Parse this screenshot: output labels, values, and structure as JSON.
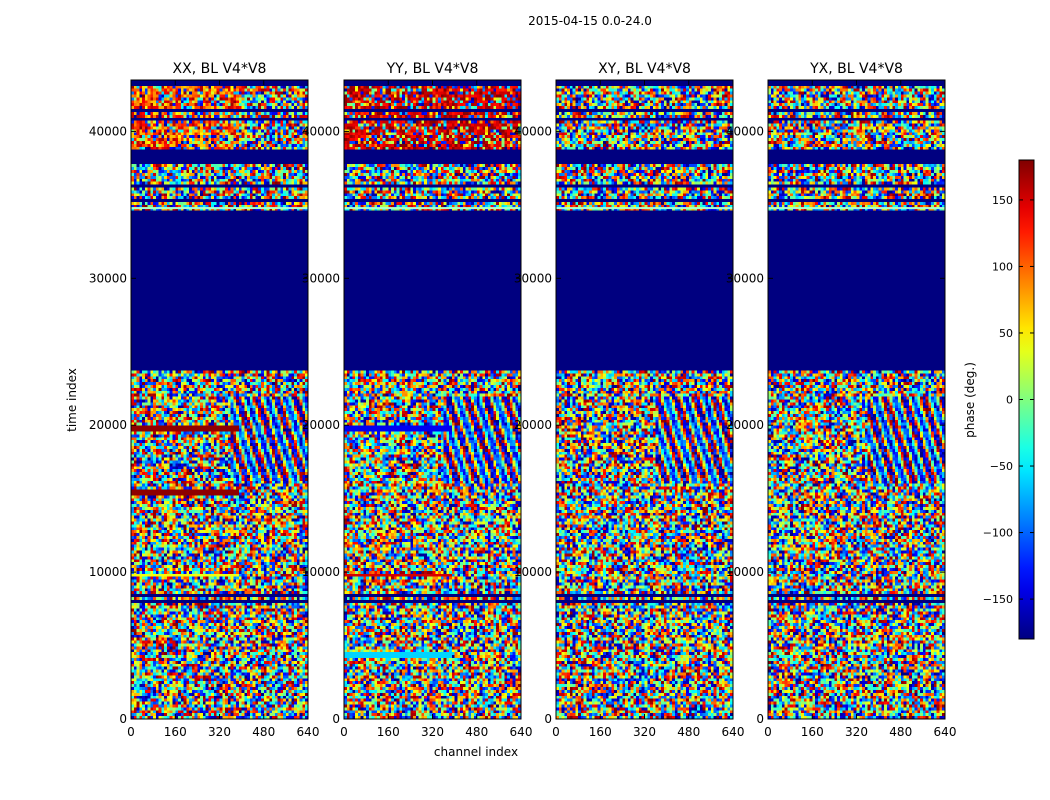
{
  "figure": {
    "suptitle": "2015-04-15 0.0-24.0"
  },
  "chart_data": {
    "type": "heatmap",
    "title": "2015-04-15 0.0-24.0",
    "xlabel": "channel index",
    "ylabel": "time index",
    "xlim": [
      0,
      640
    ],
    "ylim": [
      0,
      43500
    ],
    "xticks": [
      0,
      160,
      320,
      480,
      640
    ],
    "yticks": [
      0,
      10000,
      20000,
      30000,
      40000
    ],
    "colorbar": {
      "label": "phase (deg.)",
      "range": [
        -180,
        180
      ],
      "ticks": [
        -150,
        -100,
        -50,
        0,
        50,
        100,
        150
      ],
      "tick_labels": [
        "−150",
        "−100",
        "−50",
        "0",
        "50",
        "100",
        "150"
      ],
      "colormap": "jet"
    },
    "panels": [
      {
        "title": "XX, BL V4*V8",
        "pol": "XX"
      },
      {
        "title": "YY, BL V4*V8",
        "pol": "YY"
      },
      {
        "title": "XY, BL V4*V8",
        "pol": "XY"
      },
      {
        "title": "YX, BL V4*V8",
        "pol": "YX"
      }
    ],
    "blank_time_ranges": [
      [
        23800,
        34700
      ],
      [
        37700,
        38800
      ]
    ],
    "highlight_rows": {
      "XX": [
        {
          "t": 19800,
          "phase": 175
        },
        {
          "t": 15500,
          "phase": 175
        },
        {
          "t": 9800,
          "phase": 40
        }
      ],
      "YY": [
        {
          "t": 19800,
          "phase": -140
        },
        {
          "t": 9800,
          "phase": 150
        },
        {
          "t": 4400,
          "phase": -60
        }
      ]
    }
  }
}
